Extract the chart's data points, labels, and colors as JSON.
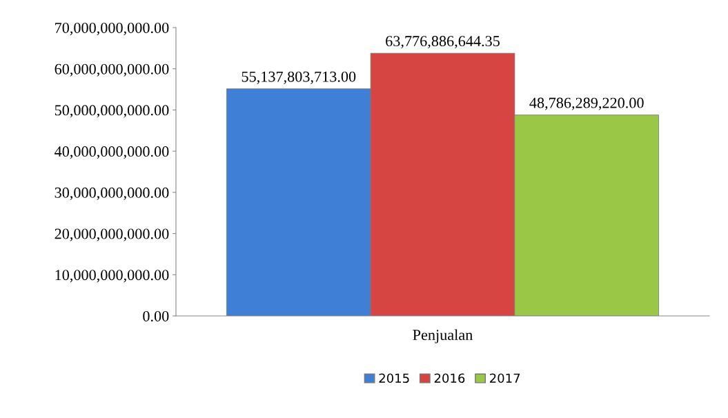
{
  "chart_data": {
    "type": "bar",
    "categories": [
      "Penjualan"
    ],
    "series": [
      {
        "name": "2015",
        "color": "#3f7fd6",
        "values": [
          55137803713.0
        ],
        "value_labels": [
          "55,137,803,713.00"
        ]
      },
      {
        "name": "2016",
        "color": "#d64541",
        "values": [
          63776886644.35
        ],
        "value_labels": [
          "63,776,886,644.35"
        ]
      },
      {
        "name": "2017",
        "color": "#9ac846",
        "values": [
          48786289220.0
        ],
        "value_labels": [
          "48,786,289,220.00"
        ]
      }
    ],
    "ylim": [
      0,
      70000000000
    ],
    "yticks": [
      {
        "value": 0,
        "label": "0.00"
      },
      {
        "value": 10000000000,
        "label": "10,000,000,000.00"
      },
      {
        "value": 20000000000,
        "label": "20,000,000,000.00"
      },
      {
        "value": 30000000000,
        "label": "30,000,000,000.00"
      },
      {
        "value": 40000000000,
        "label": "40,000,000,000.00"
      },
      {
        "value": 50000000000,
        "label": "50,000,000,000.00"
      },
      {
        "value": 60000000000,
        "label": "60,000,000,000.00"
      },
      {
        "value": 70000000000,
        "label": "70,000,000,000.00"
      }
    ],
    "grid": false,
    "legend": "bottom"
  }
}
